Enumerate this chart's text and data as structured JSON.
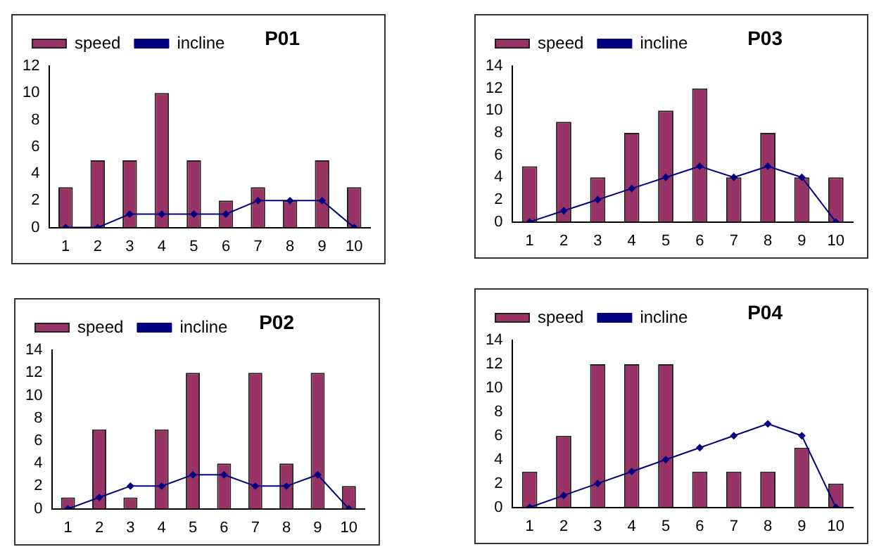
{
  "chart_data": [
    {
      "type": "bar",
      "title": "P01",
      "categories": [
        "1",
        "2",
        "3",
        "4",
        "5",
        "6",
        "7",
        "8",
        "9",
        "10"
      ],
      "ylim": [
        0,
        12
      ],
      "yticks": [
        0,
        2,
        4,
        6,
        8,
        10,
        12
      ],
      "grid": false,
      "legend": "top left",
      "marker": "diamond",
      "series": [
        {
          "name": "speed",
          "color": "#993366",
          "values": [
            3,
            5,
            5,
            10,
            5,
            2,
            3,
            2,
            5,
            3
          ]
        },
        {
          "name": "incline",
          "type": "line",
          "color": "#000080",
          "values": [
            0,
            0,
            1,
            1,
            1,
            1,
            2,
            2,
            2,
            0
          ]
        }
      ]
    },
    {
      "type": "bar",
      "title": "P03",
      "categories": [
        "1",
        "2",
        "3",
        "4",
        "5",
        "6",
        "7",
        "8",
        "9",
        "10"
      ],
      "ylim": [
        0,
        14
      ],
      "yticks": [
        0,
        2,
        4,
        6,
        8,
        10,
        12,
        14
      ],
      "grid": false,
      "legend": "top left",
      "marker": "diamond",
      "series": [
        {
          "name": "speed",
          "color": "#993366",
          "values": [
            5,
            9,
            4,
            8,
            10,
            12,
            4,
            8,
            4,
            4
          ]
        },
        {
          "name": "incline",
          "type": "line",
          "color": "#000080",
          "values": [
            0,
            1,
            2,
            3,
            4,
            5,
            4,
            5,
            4,
            0
          ]
        }
      ]
    },
    {
      "type": "bar",
      "title": "P02",
      "categories": [
        "1",
        "2",
        "3",
        "4",
        "5",
        "6",
        "7",
        "8",
        "9",
        "10"
      ],
      "ylim": [
        0,
        14
      ],
      "yticks": [
        0,
        2,
        4,
        6,
        8,
        10,
        12,
        14
      ],
      "grid": false,
      "legend": "top left",
      "marker": "diamond",
      "series": [
        {
          "name": "speed",
          "color": "#993366",
          "values": [
            1,
            7,
            1,
            7,
            12,
            4,
            12,
            4,
            12,
            2
          ]
        },
        {
          "name": "incline",
          "type": "line",
          "color": "#000080",
          "values": [
            0,
            1,
            2,
            2,
            3,
            3,
            2,
            2,
            3,
            0
          ]
        }
      ]
    },
    {
      "type": "bar",
      "title": "P04",
      "categories": [
        "1",
        "2",
        "3",
        "4",
        "5",
        "6",
        "7",
        "8",
        "9",
        "10"
      ],
      "ylim": [
        0,
        14
      ],
      "yticks": [
        0,
        2,
        4,
        6,
        8,
        10,
        12,
        14
      ],
      "grid": false,
      "legend": "top left",
      "marker": "diamond",
      "series": [
        {
          "name": "speed",
          "color": "#993366",
          "values": [
            3,
            6,
            12,
            12,
            12,
            3,
            3,
            3,
            5,
            2
          ]
        },
        {
          "name": "incline",
          "type": "line",
          "color": "#000080",
          "values": [
            0,
            1,
            2,
            3,
            4,
            5,
            6,
            7,
            6,
            0
          ]
        }
      ]
    }
  ]
}
